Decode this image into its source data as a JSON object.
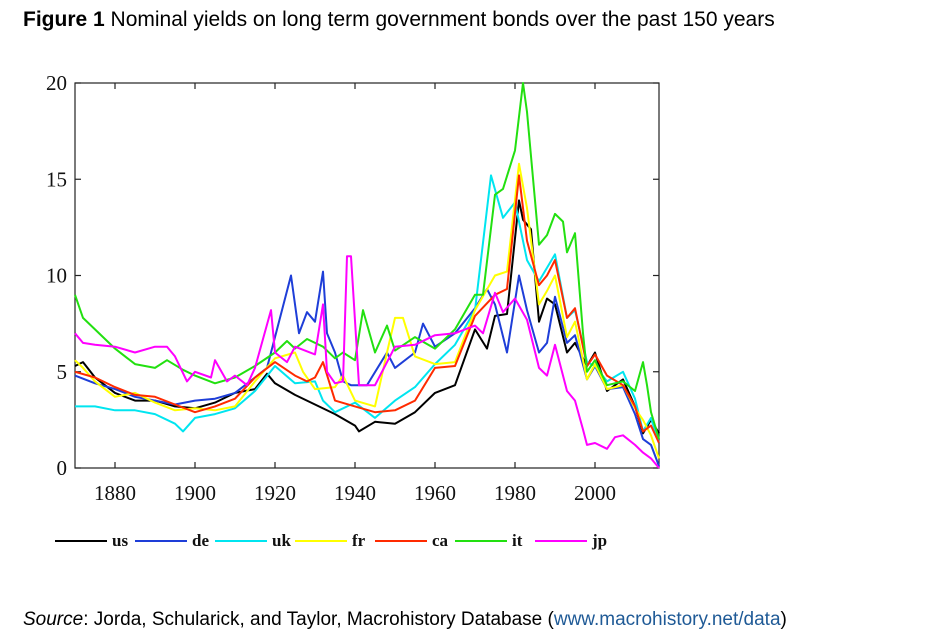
{
  "figure": {
    "label": "Figure 1",
    "title": "Nominal yields on long term government bonds over the past 150 years"
  },
  "source": {
    "prefix": "Source",
    "text": ": Jorda, Schularick, and Taylor, Macrohistory Database (",
    "link": "www.macrohistory.net/data",
    "suffix": ")"
  },
  "chart_data": {
    "type": "line",
    "xlim": [
      1870,
      2016
    ],
    "ylim": [
      0,
      20
    ],
    "x_ticks": [
      1880,
      1900,
      1920,
      1940,
      1960,
      1980,
      2000
    ],
    "y_ticks": [
      0,
      5,
      10,
      15,
      20
    ],
    "grid": false,
    "legend_position": "bottom",
    "series": [
      {
        "name": "us",
        "color": "#000000",
        "points": [
          [
            1870,
            5.3
          ],
          [
            1872,
            5.5
          ],
          [
            1875,
            4.7
          ],
          [
            1880,
            3.9
          ],
          [
            1885,
            3.5
          ],
          [
            1890,
            3.5
          ],
          [
            1895,
            3.2
          ],
          [
            1900,
            3.1
          ],
          [
            1905,
            3.4
          ],
          [
            1910,
            3.9
          ],
          [
            1915,
            4.1
          ],
          [
            1918,
            4.9
          ],
          [
            1920,
            4.4
          ],
          [
            1925,
            3.8
          ],
          [
            1930,
            3.3
          ],
          [
            1935,
            2.8
          ],
          [
            1940,
            2.2
          ],
          [
            1941,
            1.9
          ],
          [
            1945,
            2.4
          ],
          [
            1950,
            2.3
          ],
          [
            1955,
            2.9
          ],
          [
            1960,
            3.9
          ],
          [
            1965,
            4.3
          ],
          [
            1970,
            7.2
          ],
          [
            1973,
            6.2
          ],
          [
            1975,
            7.9
          ],
          [
            1978,
            8.0
          ],
          [
            1981,
            13.9
          ],
          [
            1982,
            12.9
          ],
          [
            1984,
            12.4
          ],
          [
            1986,
            7.6
          ],
          [
            1988,
            8.8
          ],
          [
            1990,
            8.5
          ],
          [
            1993,
            6.0
          ],
          [
            1995,
            6.5
          ],
          [
            1998,
            5.3
          ],
          [
            2000,
            6.0
          ],
          [
            2003,
            4.0
          ],
          [
            2007,
            4.6
          ],
          [
            2010,
            3.2
          ],
          [
            2012,
            1.8
          ],
          [
            2014,
            2.5
          ],
          [
            2016,
            1.8
          ]
        ]
      },
      {
        "name": "de",
        "color": "#1e3ed8",
        "points": [
          [
            1870,
            4.8
          ],
          [
            1875,
            4.4
          ],
          [
            1880,
            4.1
          ],
          [
            1885,
            3.7
          ],
          [
            1890,
            3.5
          ],
          [
            1895,
            3.3
          ],
          [
            1900,
            3.5
          ],
          [
            1905,
            3.6
          ],
          [
            1910,
            3.9
          ],
          [
            1915,
            4.7
          ],
          [
            1918,
            5.2
          ],
          [
            1924,
            10.0
          ],
          [
            1926,
            7.0
          ],
          [
            1928,
            8.1
          ],
          [
            1930,
            7.6
          ],
          [
            1932,
            10.2
          ],
          [
            1933,
            7.0
          ],
          [
            1935,
            6.0
          ],
          [
            1937,
            4.5
          ],
          [
            1939,
            4.3
          ],
          [
            1943,
            4.3
          ],
          [
            1948,
            6.0
          ],
          [
            1950,
            5.2
          ],
          [
            1955,
            6.0
          ],
          [
            1957,
            7.5
          ],
          [
            1960,
            6.3
          ],
          [
            1965,
            7.0
          ],
          [
            1970,
            8.3
          ],
          [
            1973,
            9.3
          ],
          [
            1975,
            8.5
          ],
          [
            1978,
            6.0
          ],
          [
            1981,
            10.0
          ],
          [
            1983,
            8.2
          ],
          [
            1986,
            6.0
          ],
          [
            1988,
            6.5
          ],
          [
            1990,
            8.9
          ],
          [
            1993,
            6.5
          ],
          [
            1995,
            6.9
          ],
          [
            1998,
            4.6
          ],
          [
            2000,
            5.3
          ],
          [
            2003,
            4.1
          ],
          [
            2007,
            4.2
          ],
          [
            2010,
            2.8
          ],
          [
            2012,
            1.5
          ],
          [
            2014,
            1.2
          ],
          [
            2016,
            0.1
          ]
        ]
      },
      {
        "name": "uk",
        "color": "#00e5f0",
        "points": [
          [
            1870,
            3.2
          ],
          [
            1875,
            3.2
          ],
          [
            1880,
            3.0
          ],
          [
            1885,
            3.0
          ],
          [
            1890,
            2.8
          ],
          [
            1895,
            2.3
          ],
          [
            1897,
            1.9
          ],
          [
            1900,
            2.6
          ],
          [
            1905,
            2.8
          ],
          [
            1910,
            3.1
          ],
          [
            1915,
            4.0
          ],
          [
            1920,
            5.3
          ],
          [
            1925,
            4.4
          ],
          [
            1930,
            4.5
          ],
          [
            1932,
            3.5
          ],
          [
            1935,
            2.9
          ],
          [
            1940,
            3.4
          ],
          [
            1945,
            2.6
          ],
          [
            1950,
            3.5
          ],
          [
            1955,
            4.2
          ],
          [
            1960,
            5.4
          ],
          [
            1965,
            6.4
          ],
          [
            1970,
            8.2
          ],
          [
            1974,
            15.2
          ],
          [
            1977,
            13.0
          ],
          [
            1980,
            13.8
          ],
          [
            1983,
            10.8
          ],
          [
            1986,
            9.7
          ],
          [
            1990,
            11.1
          ],
          [
            1993,
            7.8
          ],
          [
            1995,
            8.2
          ],
          [
            1998,
            5.5
          ],
          [
            2000,
            5.3
          ],
          [
            2003,
            4.5
          ],
          [
            2007,
            5.0
          ],
          [
            2010,
            3.6
          ],
          [
            2012,
            1.9
          ],
          [
            2014,
            2.6
          ],
          [
            2016,
            1.3
          ]
        ]
      },
      {
        "name": "fr",
        "color": "#ffff00",
        "points": [
          [
            1870,
            5.6
          ],
          [
            1872,
            5.2
          ],
          [
            1875,
            4.5
          ],
          [
            1880,
            3.7
          ],
          [
            1885,
            3.9
          ],
          [
            1890,
            3.4
          ],
          [
            1895,
            3.0
          ],
          [
            1900,
            3.1
          ],
          [
            1905,
            3.0
          ],
          [
            1910,
            3.2
          ],
          [
            1915,
            4.5
          ],
          [
            1920,
            5.7
          ],
          [
            1925,
            6.0
          ],
          [
            1927,
            5.0
          ],
          [
            1930,
            4.1
          ],
          [
            1935,
            4.2
          ],
          [
            1937,
            4.8
          ],
          [
            1940,
            3.5
          ],
          [
            1945,
            3.2
          ],
          [
            1948,
            6.0
          ],
          [
            1950,
            7.8
          ],
          [
            1952,
            7.8
          ],
          [
            1955,
            5.8
          ],
          [
            1960,
            5.4
          ],
          [
            1965,
            5.5
          ],
          [
            1970,
            8.2
          ],
          [
            1975,
            10.0
          ],
          [
            1978,
            10.2
          ],
          [
            1981,
            15.8
          ],
          [
            1983,
            13.5
          ],
          [
            1986,
            8.5
          ],
          [
            1988,
            9.2
          ],
          [
            1990,
            10.0
          ],
          [
            1993,
            6.8
          ],
          [
            1995,
            7.6
          ],
          [
            1998,
            4.6
          ],
          [
            2000,
            5.4
          ],
          [
            2003,
            4.1
          ],
          [
            2007,
            4.3
          ],
          [
            2010,
            3.1
          ],
          [
            2012,
            2.5
          ],
          [
            2014,
            1.7
          ],
          [
            2016,
            0.5
          ]
        ]
      },
      {
        "name": "ca",
        "color": "#ff2a00",
        "points": [
          [
            1870,
            5.0
          ],
          [
            1875,
            4.7
          ],
          [
            1880,
            4.2
          ],
          [
            1885,
            3.8
          ],
          [
            1890,
            3.7
          ],
          [
            1895,
            3.3
          ],
          [
            1900,
            2.9
          ],
          [
            1905,
            3.2
          ],
          [
            1910,
            3.6
          ],
          [
            1915,
            4.7
          ],
          [
            1920,
            5.5
          ],
          [
            1925,
            4.8
          ],
          [
            1928,
            4.5
          ],
          [
            1930,
            4.7
          ],
          [
            1932,
            5.5
          ],
          [
            1935,
            3.5
          ],
          [
            1940,
            3.2
          ],
          [
            1945,
            2.9
          ],
          [
            1950,
            3.0
          ],
          [
            1955,
            3.5
          ],
          [
            1960,
            5.2
          ],
          [
            1965,
            5.3
          ],
          [
            1970,
            7.9
          ],
          [
            1975,
            9.0
          ],
          [
            1978,
            9.3
          ],
          [
            1981,
            15.2
          ],
          [
            1983,
            11.8
          ],
          [
            1986,
            9.5
          ],
          [
            1988,
            10.0
          ],
          [
            1990,
            10.8
          ],
          [
            1993,
            7.8
          ],
          [
            1995,
            8.3
          ],
          [
            1998,
            5.3
          ],
          [
            2000,
            5.9
          ],
          [
            2003,
            4.8
          ],
          [
            2007,
            4.3
          ],
          [
            2010,
            3.2
          ],
          [
            2012,
            1.9
          ],
          [
            2014,
            2.2
          ],
          [
            2016,
            1.3
          ]
        ]
      },
      {
        "name": "it",
        "color": "#22e010",
        "points": [
          [
            1870,
            9.0
          ],
          [
            1872,
            7.8
          ],
          [
            1875,
            7.2
          ],
          [
            1880,
            6.2
          ],
          [
            1885,
            5.4
          ],
          [
            1890,
            5.2
          ],
          [
            1893,
            5.6
          ],
          [
            1897,
            5.1
          ],
          [
            1900,
            4.8
          ],
          [
            1905,
            4.4
          ],
          [
            1910,
            4.7
          ],
          [
            1915,
            5.3
          ],
          [
            1920,
            6.0
          ],
          [
            1923,
            6.6
          ],
          [
            1925,
            6.2
          ],
          [
            1928,
            6.7
          ],
          [
            1932,
            6.3
          ],
          [
            1935,
            5.7
          ],
          [
            1937,
            6.0
          ],
          [
            1940,
            5.6
          ],
          [
            1942,
            8.2
          ],
          [
            1945,
            6.0
          ],
          [
            1948,
            7.4
          ],
          [
            1950,
            6.1
          ],
          [
            1955,
            6.8
          ],
          [
            1960,
            6.2
          ],
          [
            1965,
            7.2
          ],
          [
            1970,
            9.0
          ],
          [
            1972,
            9.0
          ],
          [
            1975,
            14.2
          ],
          [
            1977,
            14.5
          ],
          [
            1980,
            16.5
          ],
          [
            1982,
            20.0
          ],
          [
            1983,
            18.5
          ],
          [
            1986,
            11.6
          ],
          [
            1988,
            12.1
          ],
          [
            1990,
            13.2
          ],
          [
            1992,
            12.8
          ],
          [
            1993,
            11.2
          ],
          [
            1995,
            12.2
          ],
          [
            1997,
            7.0
          ],
          [
            1998,
            5.0
          ],
          [
            2000,
            5.6
          ],
          [
            2003,
            4.3
          ],
          [
            2007,
            4.5
          ],
          [
            2010,
            4.0
          ],
          [
            2012,
            5.5
          ],
          [
            2013,
            4.3
          ],
          [
            2014,
            2.9
          ],
          [
            2016,
            1.5
          ]
        ]
      },
      {
        "name": "jp",
        "color": "#ff00ff",
        "points": [
          [
            1870,
            7.0
          ],
          [
            1872,
            6.5
          ],
          [
            1875,
            6.4
          ],
          [
            1880,
            6.3
          ],
          [
            1885,
            6.0
          ],
          [
            1890,
            6.3
          ],
          [
            1893,
            6.3
          ],
          [
            1895,
            5.8
          ],
          [
            1898,
            4.5
          ],
          [
            1900,
            5.0
          ],
          [
            1904,
            4.7
          ],
          [
            1905,
            5.6
          ],
          [
            1908,
            4.5
          ],
          [
            1910,
            4.8
          ],
          [
            1913,
            4.3
          ],
          [
            1915,
            5.2
          ],
          [
            1919,
            8.2
          ],
          [
            1920,
            6.0
          ],
          [
            1923,
            5.5
          ],
          [
            1925,
            6.3
          ],
          [
            1930,
            5.9
          ],
          [
            1932,
            8.5
          ],
          [
            1933,
            5.0
          ],
          [
            1935,
            4.4
          ],
          [
            1937,
            4.5
          ],
          [
            1938,
            11.0
          ],
          [
            1939,
            11.0
          ],
          [
            1941,
            4.3
          ],
          [
            1945,
            4.3
          ],
          [
            1950,
            6.3
          ],
          [
            1955,
            6.4
          ],
          [
            1960,
            6.9
          ],
          [
            1965,
            7.0
          ],
          [
            1970,
            7.4
          ],
          [
            1972,
            7.0
          ],
          [
            1975,
            9.1
          ],
          [
            1977,
            8.1
          ],
          [
            1980,
            8.8
          ],
          [
            1983,
            7.7
          ],
          [
            1986,
            5.2
          ],
          [
            1988,
            4.8
          ],
          [
            1990,
            6.4
          ],
          [
            1993,
            4.0
          ],
          [
            1995,
            3.5
          ],
          [
            1997,
            2.0
          ],
          [
            1998,
            1.2
          ],
          [
            2000,
            1.3
          ],
          [
            2003,
            1.0
          ],
          [
            2005,
            1.6
          ],
          [
            2007,
            1.7
          ],
          [
            2010,
            1.2
          ],
          [
            2012,
            0.8
          ],
          [
            2014,
            0.5
          ],
          [
            2016,
            0.0
          ]
        ]
      }
    ]
  }
}
